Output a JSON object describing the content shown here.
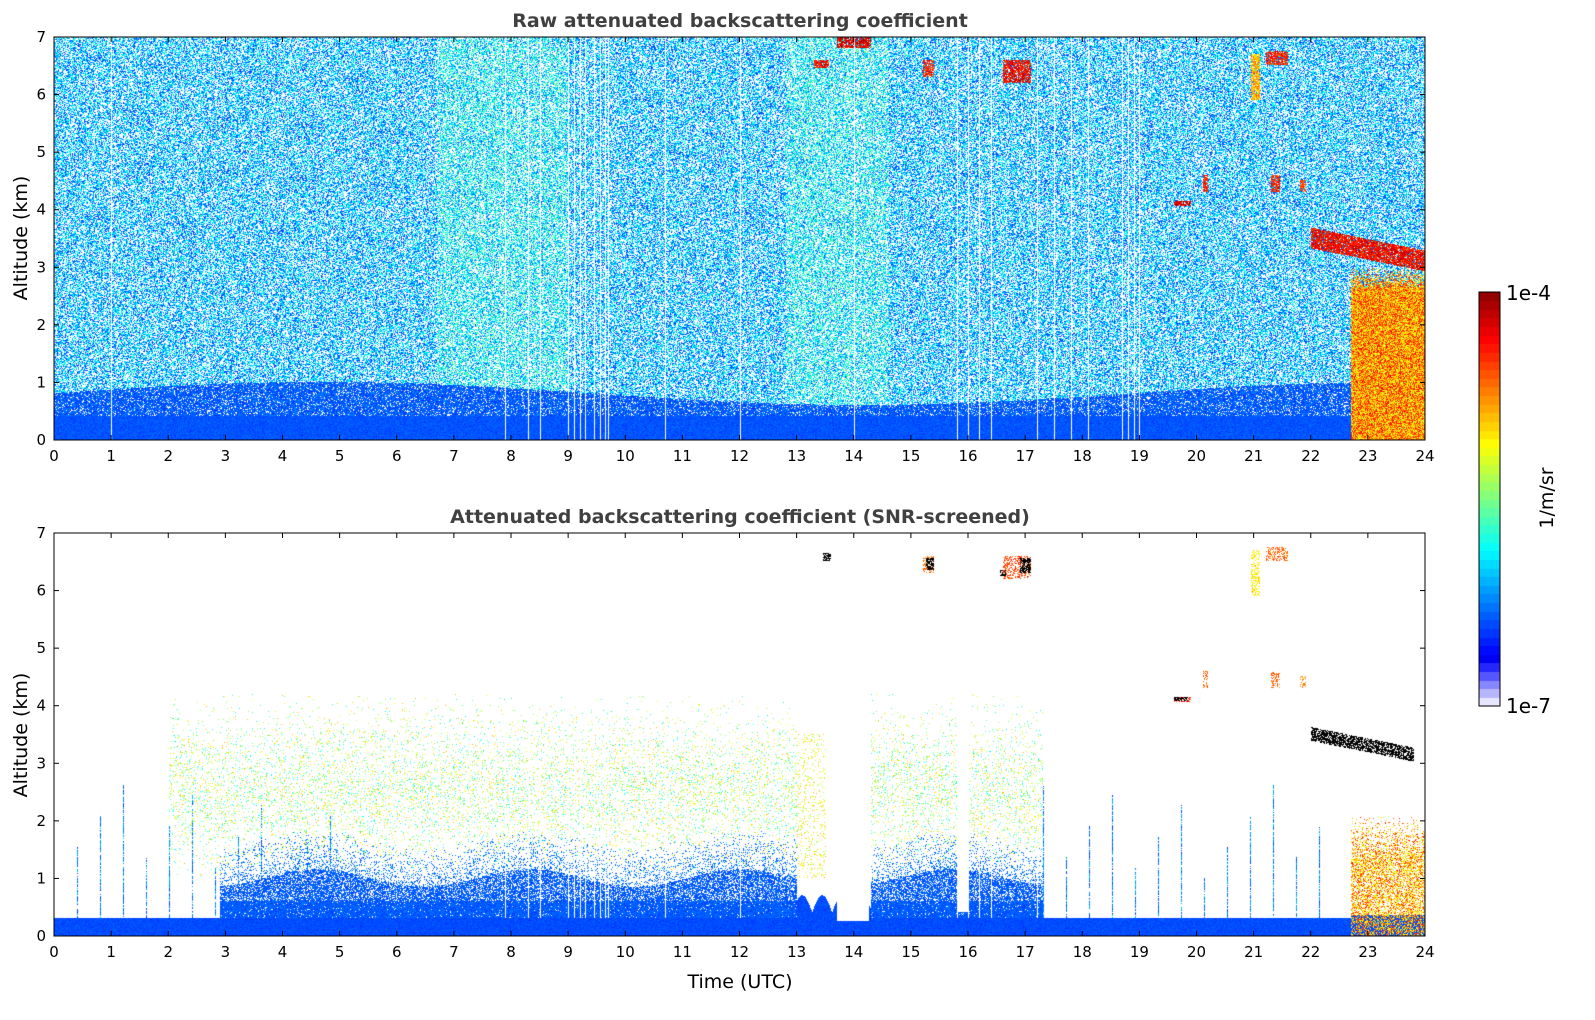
{
  "chart_data": [
    {
      "type": "heatmap",
      "title": "Raw attenuated backscattering coefficient",
      "xlabel": "",
      "ylabel": "Altitude (km)",
      "xlim": [
        0,
        24
      ],
      "ylim": [
        0,
        7
      ],
      "xticks": [
        "0",
        "1",
        "2",
        "3",
        "4",
        "5",
        "6",
        "7",
        "8",
        "9",
        "10",
        "11",
        "12",
        "13",
        "14",
        "15",
        "16",
        "17",
        "18",
        "19",
        "20",
        "21",
        "22",
        "23",
        "24"
      ],
      "yticks": [
        "0",
        "1",
        "2",
        "3",
        "4",
        "5",
        "6",
        "7"
      ],
      "boundary_layer_top_km": 0.9,
      "data_gaps_hours": [
        1.0,
        7.9,
        8.3,
        8.5,
        9.0,
        9.1,
        9.2,
        9.3,
        9.45,
        9.55,
        9.65,
        9.7,
        10.7,
        12.0,
        14.0,
        15.8,
        16.0,
        16.2,
        16.4,
        17.2,
        17.5,
        17.8,
        18.1,
        18.7,
        18.8,
        18.9,
        19.0
      ],
      "features": [
        {
          "t": [
            13.7,
            14.3
          ],
          "z": [
            6.8,
            7.0
          ],
          "log10": -4.0
        },
        {
          "t": [
            13.3,
            13.55
          ],
          "z": [
            6.45,
            6.6
          ],
          "log10": -4.1
        },
        {
          "t": [
            15.2,
            15.4
          ],
          "z": [
            6.3,
            6.6
          ],
          "log10": -4.2
        },
        {
          "t": [
            16.6,
            17.1
          ],
          "z": [
            6.2,
            6.6
          ],
          "log10": -4.1
        },
        {
          "t": [
            19.6,
            19.9
          ],
          "z": [
            4.05,
            4.15
          ],
          "log10": -4.0
        },
        {
          "t": [
            20.1,
            20.2
          ],
          "z": [
            4.3,
            4.6
          ],
          "log10": -4.2
        },
        {
          "t": [
            20.95,
            21.1
          ],
          "z": [
            5.9,
            6.7
          ],
          "log10": -4.6
        },
        {
          "t": [
            21.2,
            21.6
          ],
          "z": [
            6.5,
            6.75
          ],
          "log10": -4.2
        },
        {
          "t": [
            21.3,
            21.45
          ],
          "z": [
            4.3,
            4.6
          ],
          "log10": -4.2
        },
        {
          "t": [
            21.8,
            21.9
          ],
          "z": [
            4.3,
            4.5
          ],
          "log10": -4.3
        },
        {
          "t": [
            22.0,
            24.0
          ],
          "z": [
            3.0,
            3.6
          ],
          "log10": -4.1,
          "shape": "descending"
        },
        {
          "t": [
            22.7,
            24.0
          ],
          "z": [
            0.0,
            3.0
          ],
          "log10": -4.8,
          "shape": "precipitation"
        }
      ]
    },
    {
      "type": "heatmap",
      "title": "Attenuated backscattering coefficient (SNR-screened)",
      "xlabel": "Time (UTC)",
      "ylabel": "Altitude (km)",
      "xlim": [
        0,
        24
      ],
      "ylim": [
        0,
        7
      ],
      "xticks": [
        "0",
        "1",
        "2",
        "3",
        "4",
        "5",
        "6",
        "7",
        "8",
        "9",
        "10",
        "11",
        "12",
        "13",
        "14",
        "15",
        "16",
        "17",
        "18",
        "19",
        "20",
        "21",
        "22",
        "23",
        "24"
      ],
      "yticks": [
        "0",
        "1",
        "2",
        "3",
        "4",
        "5",
        "6",
        "7"
      ],
      "surface_layer_top_km": 0.3,
      "boundary_layer_top_km": 1.0,
      "aerosol_layer_km": [
        1.0,
        4.0
      ],
      "screened_out_hours": [
        [
          13.0,
          14.3
        ],
        [
          15.8,
          16.0
        ]
      ]
    }
  ],
  "colorbar": {
    "label": "1/m/sr",
    "max_label": "1e-4",
    "min_label": "1e-7",
    "range_log10": [
      -7,
      -4
    ],
    "colormap": "jet"
  }
}
